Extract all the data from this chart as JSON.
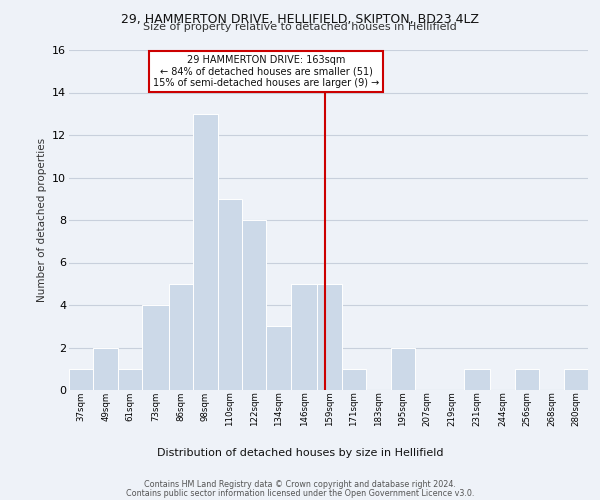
{
  "title1": "29, HAMMERTON DRIVE, HELLIFIELD, SKIPTON, BD23 4LZ",
  "title2": "Size of property relative to detached houses in Hellifield",
  "xlabel": "Distribution of detached houses by size in Hellifield",
  "ylabel": "Number of detached properties",
  "footer1": "Contains HM Land Registry data © Crown copyright and database right 2024.",
  "footer2": "Contains public sector information licensed under the Open Government Licence v3.0.",
  "annotation_line1": "29 HAMMERTON DRIVE: 163sqm",
  "annotation_line2": "← 84% of detached houses are smaller (51)",
  "annotation_line3": "15% of semi-detached houses are larger (9) →",
  "categories": [
    "37sqm",
    "49sqm",
    "61sqm",
    "73sqm",
    "86sqm",
    "98sqm",
    "110sqm",
    "122sqm",
    "134sqm",
    "146sqm",
    "159sqm",
    "171sqm",
    "183sqm",
    "195sqm",
    "207sqm",
    "219sqm",
    "231sqm",
    "244sqm",
    "256sqm",
    "268sqm",
    "280sqm"
  ],
  "bin_edges": [
    37,
    49,
    61,
    73,
    86,
    98,
    110,
    122,
    134,
    146,
    159,
    171,
    183,
    195,
    207,
    219,
    231,
    244,
    256,
    268,
    280,
    292
  ],
  "values": [
    1,
    2,
    1,
    4,
    5,
    13,
    9,
    8,
    3,
    5,
    5,
    1,
    0,
    2,
    0,
    0,
    1,
    0,
    1,
    0,
    1
  ],
  "bar_color": "#ccd9e8",
  "bar_edge_color": "#ffffff",
  "grid_color": "#c8d0dc",
  "bg_color": "#eef2f8",
  "vline_x": 163,
  "vline_color": "#cc0000",
  "box_color": "#cc0000",
  "ylim": [
    0,
    16
  ],
  "yticks": [
    0,
    2,
    4,
    6,
    8,
    10,
    12,
    14,
    16
  ]
}
